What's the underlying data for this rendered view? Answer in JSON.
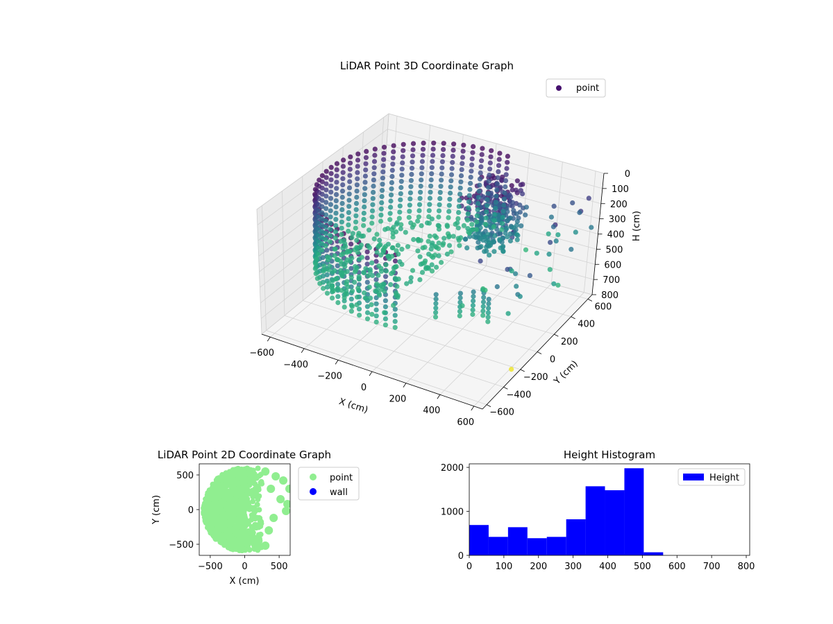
{
  "figure": {
    "background": "#ffffff"
  },
  "chart_data": [
    {
      "type": "scatter",
      "projection": "3d",
      "title": "LiDAR Point 3D Coordinate Graph",
      "xlabel": "X (cm)",
      "ylabel": "Y (cm)",
      "zlabel": "H (cm)",
      "xlim": [
        -650,
        650
      ],
      "ylim": [
        -650,
        650
      ],
      "zlim": [
        800,
        0
      ],
      "x_ticks": [
        -600,
        -400,
        -200,
        0,
        200,
        400,
        600
      ],
      "y_ticks": [
        -600,
        -400,
        -200,
        0,
        200,
        400,
        600
      ],
      "z_ticks": [
        0,
        100,
        200,
        300,
        400,
        500,
        600,
        700,
        800
      ],
      "grid": true,
      "colormap": "viridis",
      "color_by": "H (cm)",
      "legend": {
        "entries": [
          "point"
        ],
        "placement": "top-right",
        "marker_color": "#46106e"
      },
      "description_of_data": "Cylindrical wall of points at radius ~600 cm covering roughly the left half (angles 80-280 deg), heights 0-500 cm; dense object cluster near x 100-300, y 150-450 at heights 20-500 cm; scattered outlier points near x 300-650, y -200 to 650; floor/ceiling disc of points at height ~500 cm inside the wall.",
      "sample_points": [
        {
          "x": -600,
          "y": 0,
          "h": 0
        },
        {
          "x": -600,
          "y": 0,
          "h": 500
        },
        {
          "x": 0,
          "y": 600,
          "h": 0
        },
        {
          "x": 0,
          "y": -600,
          "h": 480
        },
        {
          "x": 150,
          "y": 300,
          "h": 30
        },
        {
          "x": 250,
          "y": 250,
          "h": 300
        },
        {
          "x": 500,
          "y": 400,
          "h": 200
        },
        {
          "x": 620,
          "y": -250,
          "h": 780
        }
      ]
    },
    {
      "type": "scatter",
      "title": "LiDAR Point 2D Coordinate Graph",
      "xlabel": "X (cm)",
      "ylabel": "Y (cm)",
      "xlim": [
        -660,
        660
      ],
      "ylim": [
        -660,
        660
      ],
      "x_ticks": [
        -500,
        0,
        500
      ],
      "y_ticks": [
        -500,
        0,
        500
      ],
      "grid": false,
      "legend": {
        "placement": "outside-right",
        "entries": [
          {
            "name": "point",
            "color": "#90ee90"
          },
          {
            "name": "wall",
            "color": "#0000ff"
          }
        ]
      },
      "series": [
        {
          "name": "point",
          "color": "#90ee90",
          "region": "filled half-disc of radius ~600 covering x -600 to ~250, with blobs extending to x ~650 on the right edge"
        },
        {
          "name": "wall",
          "color": "#0000ff",
          "values": []
        }
      ]
    },
    {
      "type": "bar",
      "subtype": "histogram",
      "title": "Height Histogram",
      "xlabel": "",
      "ylabel": "",
      "xlim": [
        0,
        810
      ],
      "ylim": [
        0,
        2080
      ],
      "x_ticks": [
        0,
        100,
        200,
        300,
        400,
        500,
        600,
        700,
        800
      ],
      "y_ticks": [
        0,
        1000,
        2000
      ],
      "color": "#0000ff",
      "legend": {
        "entries": [
          "Height"
        ],
        "placement": "top-right"
      },
      "bin_edges": [
        0,
        56,
        112,
        168,
        224,
        280,
        336,
        392,
        448,
        504,
        560,
        616,
        672,
        728,
        784
      ],
      "series": [
        {
          "name": "Height",
          "values": [
            690,
            420,
            640,
            390,
            420,
            820,
            1570,
            1480,
            1980,
            70,
            0,
            0,
            0,
            0
          ]
        }
      ]
    }
  ]
}
